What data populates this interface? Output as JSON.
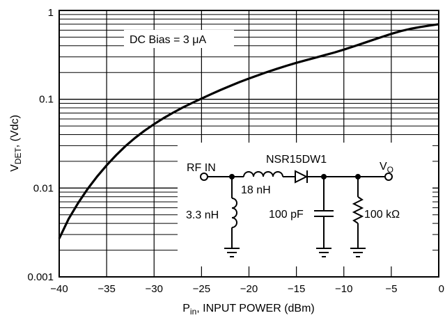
{
  "chart_data": {
    "type": "line",
    "title": "",
    "xlabel": {
      "main": "P",
      "sub": "in",
      "rest": ", INPUT POWER (dBm)"
    },
    "ylabel": {
      "main": "V",
      "sub": "DET",
      "rest": ", (Vdc)"
    },
    "xlim": [
      -40,
      0
    ],
    "ylim": [
      0.001,
      1
    ],
    "yscale": "log",
    "grid": true,
    "x_ticks": [
      -40,
      -35,
      -30,
      -25,
      -20,
      -15,
      -10,
      -5,
      0
    ],
    "x_tick_labels": [
      "−40",
      "−35",
      "−30",
      "−25",
      "−20",
      "−15",
      "−10",
      "−5",
      "0"
    ],
    "y_ticks": [
      0.001,
      0.01,
      0.1,
      1
    ],
    "y_tick_labels": [
      "0.001",
      "0.01",
      "0.1",
      "1"
    ],
    "series": [
      {
        "x": [
          -40,
          -39,
          -38,
          -37,
          -36,
          -35,
          -34,
          -33,
          -32,
          -31,
          -30,
          -29,
          -28,
          -27,
          -26,
          -25,
          -24,
          -23,
          -22,
          -21,
          -20,
          -19,
          -18,
          -17,
          -16,
          -15,
          -14,
          -13,
          -12,
          -11,
          -10,
          -9,
          -8,
          -7,
          -6,
          -5,
          -4,
          -3,
          -2,
          -1,
          0
        ],
        "y": [
          0.0027,
          0.0045,
          0.0068,
          0.0098,
          0.0135,
          0.018,
          0.0235,
          0.0298,
          0.0367,
          0.0443,
          0.0525,
          0.0613,
          0.0706,
          0.0805,
          0.0908,
          0.1018,
          0.114,
          0.127,
          0.141,
          0.156,
          0.171,
          0.187,
          0.204,
          0.221,
          0.239,
          0.257,
          0.275,
          0.294,
          0.314,
          0.336,
          0.362,
          0.392,
          0.426,
          0.463,
          0.503,
          0.545,
          0.585,
          0.62,
          0.65,
          0.675,
          0.7
        ]
      }
    ],
    "annotations": [
      {
        "text_a": "DC Bias = 3 ",
        "text_mu": "μ",
        "text_b": "A"
      }
    ]
  },
  "circuit": {
    "rf_in": "RF IN",
    "inductor_series": "18 nH",
    "diode": "NSR15DW1",
    "vout_main": "V",
    "vout_sub": "O",
    "inductor_shunt": "3.3 nH",
    "capacitor": "100 pF",
    "resistor": "100 kΩ"
  }
}
